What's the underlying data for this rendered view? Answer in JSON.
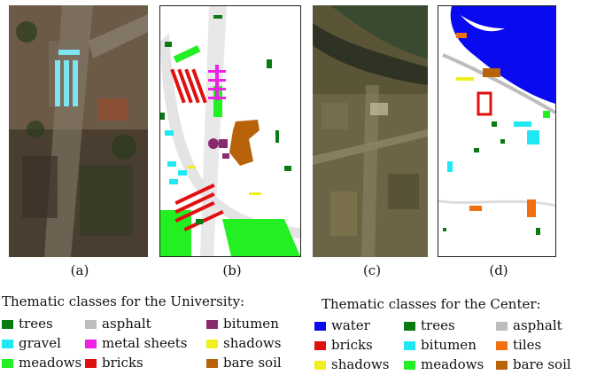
{
  "captions": [
    "(a)",
    "(b)",
    "(c)",
    "(d)"
  ],
  "university_legend": {
    "title": "Thematic classes for the University:",
    "classes": [
      {
        "label": "trees",
        "color": "#0a7a12"
      },
      {
        "label": "gravel",
        "color": "#20e8f2"
      },
      {
        "label": "meadows",
        "color": "#22f022"
      },
      {
        "label": "asphalt",
        "color": "#bdbdbd"
      },
      {
        "label": "metal sheets",
        "color": "#f020e6"
      },
      {
        "label": "bricks",
        "color": "#e01010"
      },
      {
        "label": "bitumen",
        "color": "#8a2a6e"
      },
      {
        "label": "shadows",
        "color": "#f0f020"
      },
      {
        "label": "bare soil",
        "color": "#b8620a"
      }
    ]
  },
  "center_legend": {
    "title": "Thematic classes for the Center:",
    "classes": [
      {
        "label": "water",
        "color": "#0a0af0"
      },
      {
        "label": "bricks",
        "color": "#e01010"
      },
      {
        "label": "shadows",
        "color": "#f0f020"
      },
      {
        "label": "trees",
        "color": "#0a7a12"
      },
      {
        "label": "bitumen",
        "color": "#20e8f2"
      },
      {
        "label": "meadows",
        "color": "#22f022"
      },
      {
        "label": "asphalt",
        "color": "#bdbdbd"
      },
      {
        "label": "tiles",
        "color": "#f07010"
      },
      {
        "label": "bare soil",
        "color": "#b8620a"
      }
    ]
  }
}
